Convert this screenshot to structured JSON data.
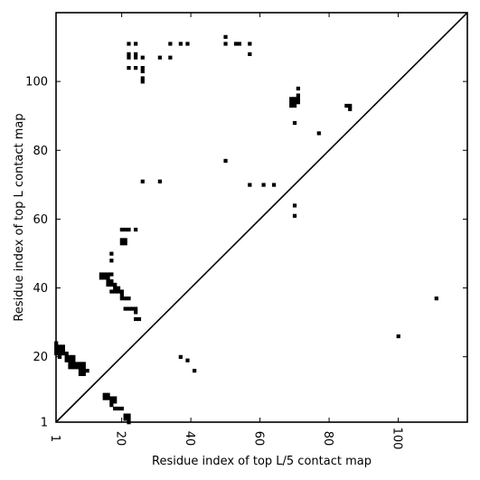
{
  "chart_data": {
    "type": "scatter",
    "xlabel": "Residue index of top L/5 contact map",
    "ylabel": "Residue index of top L contact map",
    "xlim": [
      1,
      120
    ],
    "ylim": [
      1,
      120
    ],
    "x_ticks": [
      1,
      20,
      40,
      60,
      80,
      100
    ],
    "y_ticks": [
      1,
      20,
      40,
      60,
      80,
      100
    ],
    "x_tick_labels": [
      "1",
      "20",
      "40",
      "60",
      "80",
      "100"
    ],
    "y_tick_labels": [
      "1",
      "20",
      "40",
      "60",
      "80",
      "100"
    ],
    "diagonal": true,
    "marker_color": "#000000",
    "series": [
      {
        "points": [
          [
            1,
            24
          ],
          [
            1,
            23
          ],
          [
            1,
            22
          ],
          [
            1,
            21
          ],
          [
            2,
            23
          ],
          [
            2,
            22
          ],
          [
            2,
            21
          ],
          [
            2,
            20
          ],
          [
            3,
            23
          ],
          [
            3,
            22
          ],
          [
            3,
            21
          ],
          [
            4,
            21
          ],
          [
            4,
            20
          ],
          [
            4,
            19
          ],
          [
            5,
            20
          ],
          [
            5,
            19
          ],
          [
            5,
            18
          ],
          [
            5,
            17
          ],
          [
            6,
            20
          ],
          [
            6,
            19
          ],
          [
            6,
            18
          ],
          [
            6,
            17
          ],
          [
            7,
            18
          ],
          [
            7,
            17
          ],
          [
            8,
            18
          ],
          [
            8,
            17
          ],
          [
            8,
            16
          ],
          [
            8,
            15
          ],
          [
            9,
            18
          ],
          [
            9,
            17
          ],
          [
            9,
            16
          ],
          [
            9,
            15
          ],
          [
            10,
            16
          ],
          [
            15,
            9
          ],
          [
            15,
            8
          ],
          [
            16,
            9
          ],
          [
            16,
            8
          ],
          [
            17,
            8
          ],
          [
            17,
            7
          ],
          [
            17,
            6
          ],
          [
            18,
            8
          ],
          [
            18,
            7
          ],
          [
            18,
            5
          ],
          [
            19,
            5
          ],
          [
            20,
            5
          ],
          [
            21,
            3
          ],
          [
            21,
            2
          ],
          [
            22,
            3
          ],
          [
            22,
            2
          ],
          [
            22,
            1
          ],
          [
            14,
            44
          ],
          [
            14,
            43
          ],
          [
            15,
            44
          ],
          [
            15,
            43
          ],
          [
            16,
            44
          ],
          [
            16,
            43
          ],
          [
            16,
            42
          ],
          [
            16,
            41
          ],
          [
            17,
            44
          ],
          [
            17,
            42
          ],
          [
            17,
            41
          ],
          [
            17,
            39
          ],
          [
            18,
            41
          ],
          [
            18,
            40
          ],
          [
            18,
            39
          ],
          [
            19,
            40
          ],
          [
            19,
            39
          ],
          [
            20,
            39
          ],
          [
            20,
            38
          ],
          [
            20,
            37
          ],
          [
            21,
            37
          ],
          [
            22,
            37
          ],
          [
            21,
            34
          ],
          [
            22,
            34
          ],
          [
            23,
            34
          ],
          [
            24,
            34
          ],
          [
            24,
            33
          ],
          [
            24,
            31
          ],
          [
            25,
            31
          ],
          [
            17,
            50
          ],
          [
            17,
            48
          ],
          [
            20,
            57
          ],
          [
            21,
            57
          ],
          [
            22,
            57
          ],
          [
            24,
            57
          ],
          [
            20,
            54
          ],
          [
            20,
            53
          ],
          [
            21,
            54
          ],
          [
            21,
            53
          ],
          [
            22,
            111
          ],
          [
            24,
            111
          ],
          [
            34,
            111
          ],
          [
            37,
            111
          ],
          [
            39,
            111
          ],
          [
            50,
            113
          ],
          [
            50,
            111
          ],
          [
            53,
            111
          ],
          [
            54,
            111
          ],
          [
            57,
            111
          ],
          [
            22,
            108
          ],
          [
            22,
            107
          ],
          [
            24,
            108
          ],
          [
            24,
            107
          ],
          [
            26,
            107
          ],
          [
            31,
            107
          ],
          [
            34,
            107
          ],
          [
            57,
            108
          ],
          [
            22,
            104
          ],
          [
            24,
            104
          ],
          [
            26,
            104
          ],
          [
            26,
            103
          ],
          [
            26,
            101
          ],
          [
            26,
            100
          ],
          [
            26,
            71
          ],
          [
            31,
            71
          ],
          [
            50,
            77
          ],
          [
            57,
            70
          ],
          [
            61,
            70
          ],
          [
            64,
            70
          ],
          [
            69,
            95
          ],
          [
            69,
            94
          ],
          [
            69,
            93
          ],
          [
            70,
            95
          ],
          [
            70,
            94
          ],
          [
            70,
            93
          ],
          [
            71,
            96
          ],
          [
            71,
            95
          ],
          [
            71,
            94
          ],
          [
            71,
            98
          ],
          [
            70,
            88
          ],
          [
            77,
            85
          ],
          [
            85,
            93
          ],
          [
            86,
            93
          ],
          [
            86,
            92
          ],
          [
            70,
            64
          ],
          [
            70,
            61
          ],
          [
            37,
            20
          ],
          [
            39,
            19
          ],
          [
            41,
            16
          ],
          [
            100,
            26
          ],
          [
            111,
            37
          ]
        ]
      }
    ]
  }
}
